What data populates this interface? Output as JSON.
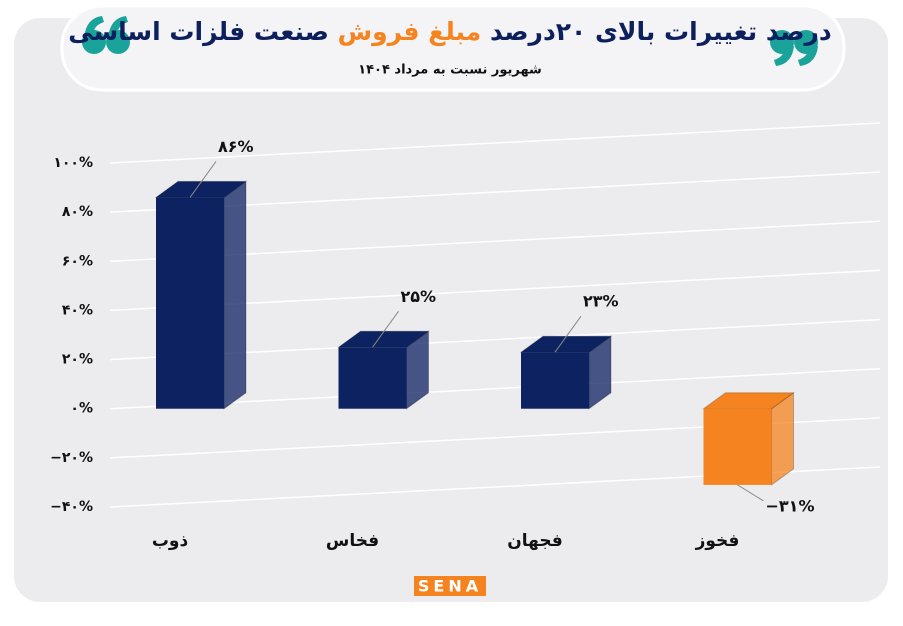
{
  "chart_data": {
    "type": "bar3d",
    "title_segments": [
      {
        "text": "درصد تغییرات بالای ۲۰درصد",
        "color": "#0d1f5c"
      },
      {
        "text": "مبلغ فروش",
        "color": "#f5831f"
      },
      {
        "text": "صنعت فلزات اساسی",
        "color": "#0d1f5c"
      }
    ],
    "subtitle": "شهریور نسبت به مرداد ۱۴۰۴",
    "categories": [
      "ذوب",
      "فخاس",
      "فجهان",
      "فخوز"
    ],
    "values": [
      86,
      25,
      23,
      -31
    ],
    "value_labels": [
      "۸۶%",
      "۲۵%",
      "۲۳%",
      "−۳۱%"
    ],
    "colors": [
      "#0d2260",
      "#0d2260",
      "#0d2260",
      "#f5831f"
    ],
    "ylim": [
      -40,
      100
    ],
    "yticks": [
      {
        "value": -40,
        "label": "−۴۰%"
      },
      {
        "value": -20,
        "label": "−۲۰%"
      },
      {
        "value": 0,
        "label": "۰%"
      },
      {
        "value": 20,
        "label": "۲۰%"
      },
      {
        "value": 40,
        "label": "۴۰%"
      },
      {
        "value": 60,
        "label": "۶۰%"
      },
      {
        "value": 80,
        "label": "۸۰%"
      },
      {
        "value": 100,
        "label": "۱۰۰%"
      }
    ],
    "grid": true,
    "logo": "SENA"
  }
}
